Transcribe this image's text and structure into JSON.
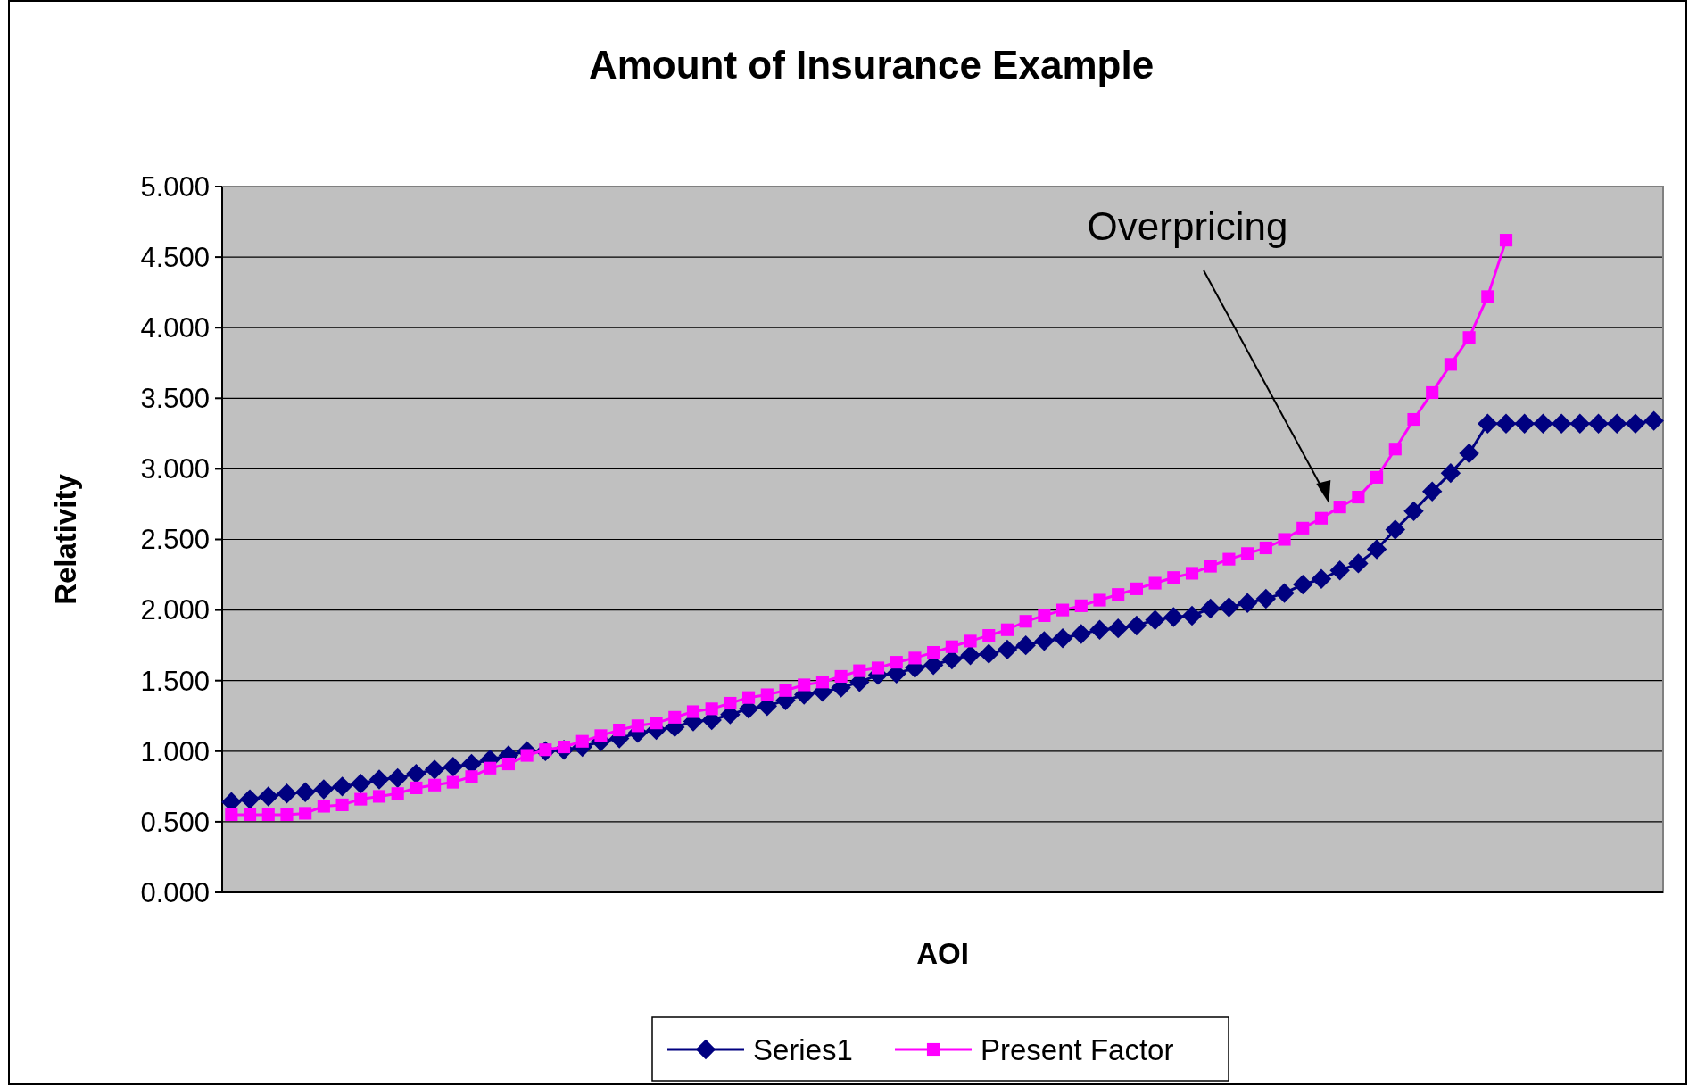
{
  "chart_data": {
    "type": "line",
    "title": "Amount of Insurance Example",
    "xlabel": "AOI",
    "ylabel": "Relativity",
    "categories": [
      null,
      null,
      null,
      null,
      null,
      null,
      null,
      null,
      null,
      null,
      null,
      null,
      null,
      null,
      null,
      null,
      null,
      null,
      null,
      null,
      null,
      null,
      null,
      null,
      null,
      null,
      null,
      null,
      null,
      null,
      null,
      null,
      null,
      null,
      null,
      null,
      null,
      null,
      null,
      null,
      null,
      null,
      null,
      null,
      null,
      null,
      null,
      null,
      null,
      null,
      null,
      null,
      null,
      null,
      null,
      null,
      null,
      null,
      null,
      null,
      null,
      null,
      null,
      null,
      null,
      null,
      null,
      null,
      null,
      null,
      null,
      null,
      null,
      null,
      null,
      null,
      null,
      null
    ],
    "series": [
      {
        "name": "Series1",
        "color": "#000080",
        "marker": "diamond",
        "values": [
          0.64,
          0.66,
          0.68,
          0.7,
          0.71,
          0.73,
          0.75,
          0.77,
          0.8,
          0.81,
          0.84,
          0.87,
          0.89,
          0.91,
          0.94,
          0.97,
          1.0,
          1.0,
          1.01,
          1.03,
          1.07,
          1.09,
          1.13,
          1.15,
          1.17,
          1.21,
          1.22,
          1.26,
          1.3,
          1.32,
          1.36,
          1.4,
          1.42,
          1.45,
          1.49,
          1.54,
          1.55,
          1.59,
          1.61,
          1.65,
          1.68,
          1.69,
          1.72,
          1.75,
          1.78,
          1.8,
          1.83,
          1.86,
          1.87,
          1.89,
          1.93,
          1.95,
          1.96,
          2.01,
          2.02,
          2.05,
          2.08,
          2.12,
          2.18,
          2.22,
          2.28,
          2.33,
          2.43,
          2.57,
          2.7,
          2.84,
          2.97,
          3.11,
          3.32,
          3.32,
          3.32,
          3.32,
          3.32,
          3.32,
          3.32,
          3.32,
          3.32,
          3.34
        ]
      },
      {
        "name": "Present Factor",
        "color": "#ff00ff",
        "marker": "square",
        "values": [
          0.55,
          0.55,
          0.55,
          0.55,
          0.56,
          0.61,
          0.62,
          0.66,
          0.68,
          0.7,
          0.74,
          0.76,
          0.78,
          0.82,
          0.88,
          0.91,
          0.97,
          1.01,
          1.03,
          1.07,
          1.11,
          1.15,
          1.18,
          1.2,
          1.24,
          1.28,
          1.3,
          1.34,
          1.38,
          1.4,
          1.43,
          1.47,
          1.49,
          1.53,
          1.57,
          1.59,
          1.63,
          1.66,
          1.7,
          1.74,
          1.78,
          1.82,
          1.86,
          1.92,
          1.96,
          2.0,
          2.03,
          2.07,
          2.11,
          2.15,
          2.19,
          2.23,
          2.26,
          2.31,
          2.36,
          2.4,
          2.44,
          2.5,
          2.58,
          2.65,
          2.73,
          2.8,
          2.94,
          3.14,
          3.35,
          3.54,
          3.74,
          3.93,
          4.22,
          4.62,
          null,
          null,
          null,
          null,
          null,
          null,
          null,
          null
        ]
      }
    ],
    "ylim": [
      0,
      5
    ],
    "yticks": [
      {
        "value": 0,
        "label": "0.000"
      },
      {
        "value": 0.5,
        "label": "0.500"
      },
      {
        "value": 1,
        "label": "1.000"
      },
      {
        "value": 1.5,
        "label": "1.500"
      },
      {
        "value": 2,
        "label": "2.000"
      },
      {
        "value": 2.5,
        "label": "2.500"
      },
      {
        "value": 3,
        "label": "3.000"
      },
      {
        "value": 3.5,
        "label": "3.500"
      },
      {
        "value": 4,
        "label": "4.000"
      },
      {
        "value": 4.5,
        "label": "4.500"
      },
      {
        "value": 5,
        "label": "5.000"
      }
    ],
    "grid": "y",
    "legend": "bottom",
    "line_style": "solid",
    "annotations": [
      "Overpricing"
    ]
  }
}
